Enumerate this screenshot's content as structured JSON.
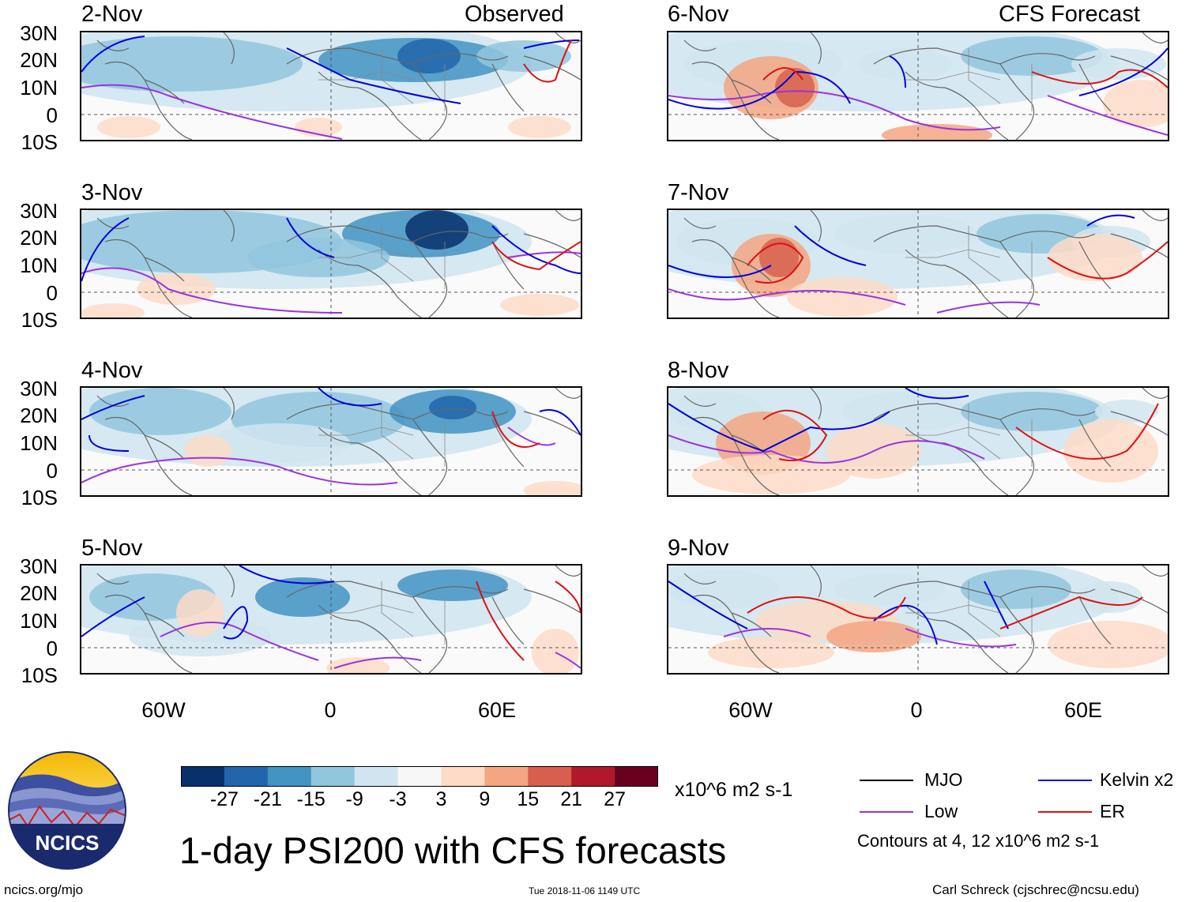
{
  "header": {
    "left_label": "Observed",
    "right_label": "CFS Forecast"
  },
  "panels": {
    "observed": [
      {
        "date": "2-Nov"
      },
      {
        "date": "3-Nov"
      },
      {
        "date": "4-Nov"
      },
      {
        "date": "5-Nov"
      }
    ],
    "forecast": [
      {
        "date": "6-Nov"
      },
      {
        "date": "7-Nov"
      },
      {
        "date": "8-Nov"
      },
      {
        "date": "9-Nov"
      }
    ]
  },
  "axes": {
    "lat_labels": [
      "30N",
      "20N",
      "10N",
      "0",
      "10S"
    ],
    "lon_labels": [
      "60W",
      "0",
      "60E"
    ]
  },
  "colorbar": {
    "colors": [
      "#08306b",
      "#2166ac",
      "#4393c3",
      "#92c5de",
      "#d1e5f0",
      "#f7f7f7",
      "#fddbc7",
      "#f4a582",
      "#d6604d",
      "#b2182b",
      "#67001f"
    ],
    "tick_labels": [
      "-27",
      "-21",
      "-15",
      "-9",
      "-3",
      "3",
      "9",
      "15",
      "21",
      "27"
    ],
    "units": "x10^6 m2 s-1"
  },
  "title": "1-day PSI200 with CFS forecasts",
  "logo": {
    "text": "NCICS"
  },
  "legend": {
    "items": [
      {
        "label": "MJO",
        "color": "#000000"
      },
      {
        "label": "Kelvin x2",
        "color": "#0000dd"
      },
      {
        "label": "Low",
        "color": "#9933dd"
      },
      {
        "label": "ER",
        "color": "#dd1111"
      }
    ],
    "note": "Contours at 4, 12 x10^6 m2 s-1"
  },
  "footer": {
    "left": "ncics.org/mjo",
    "center": "Tue 2018-11-06 1149 UTC",
    "right": "Carl Schreck (cjschrec@ncsu.edu)"
  }
}
